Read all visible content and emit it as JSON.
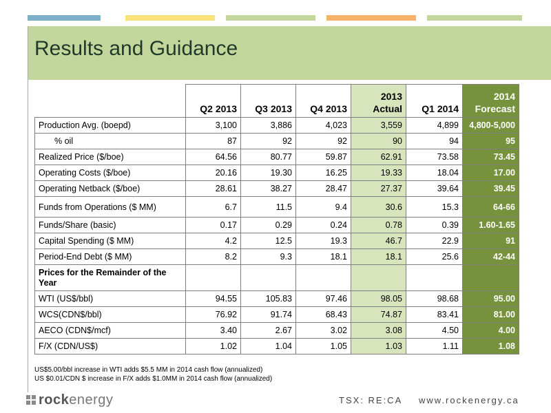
{
  "header": {
    "title": "Results and Guidance"
  },
  "colors": {
    "banner": "#c3d69b",
    "actual": "#d7e4bc",
    "forecast": "#76923c",
    "bars": [
      "#7fb0c9",
      "#f9e27a",
      "#c3d69b",
      "#f6b26b",
      "#c3d69b"
    ]
  },
  "table": {
    "columns": [
      {
        "line1": "",
        "line2": "Q2 2013"
      },
      {
        "line1": "",
        "line2": "Q3 2013"
      },
      {
        "line1": "",
        "line2": "Q4 2013"
      },
      {
        "line1": "2013",
        "line2": "Actual"
      },
      {
        "line1": "",
        "line2": "Q1 2014"
      },
      {
        "line1": "2014",
        "line2": "Forecast"
      }
    ],
    "rows": [
      {
        "label": "Production Avg. (boepd)",
        "v": [
          "3,100",
          "3,886",
          "4,023",
          "3,559",
          "4,899",
          "4,800-5,000"
        ]
      },
      {
        "label": "% oil",
        "indent": true,
        "v": [
          "87",
          "92",
          "92",
          "90",
          "94",
          "95"
        ]
      },
      {
        "label": "Realized Price ($/boe)",
        "v": [
          "64.56",
          "80.77",
          "59.87",
          "62.91",
          "73.58",
          "73.45"
        ]
      },
      {
        "label": "Operating Costs  ($/boe)",
        "v": [
          "20.16",
          "19.30",
          "16.25",
          "19.33",
          "18.04",
          "17.00"
        ]
      },
      {
        "label": "Operating Netback ($/boe)",
        "v": [
          "28.61",
          "38.27",
          "28.47",
          "27.37",
          "39.64",
          "39.45"
        ]
      },
      {
        "label": "Funds from Operations ($ MM)",
        "v": [
          "6.7",
          "11.5",
          "9.4",
          "30.6",
          "15.3",
          "64-66"
        ],
        "tall": true
      },
      {
        "label": "Funds/Share (basic)",
        "v": [
          "0.17",
          "0.29",
          "0.24",
          "0.78",
          "0.39",
          "1.60-1.65"
        ]
      },
      {
        "label": "Capital Spending ($ MM)",
        "v": [
          "4.2",
          "12.5",
          "19.3",
          "46.7",
          "22.9",
          "91"
        ]
      },
      {
        "label": "Period-End Debt ($ MM)",
        "v": [
          "8.2",
          "9.3",
          "18.1",
          "18.1",
          "25.6",
          "42-44"
        ]
      },
      {
        "label": "Prices for the Remainder of the Year",
        "section": true,
        "v": [
          "",
          "",
          "",
          "",
          "",
          ""
        ]
      },
      {
        "label": "WTI (US$/bbl)",
        "v": [
          "94.55",
          "105.83",
          "97.46",
          "98.05",
          "98.68",
          "95.00"
        ]
      },
      {
        "label": "WCS(CDN$/bbl)",
        "v": [
          "76.92",
          "91.74",
          "68.43",
          "74.87",
          "83.41",
          "81.00"
        ]
      },
      {
        "label": "AECO (CDN$/mcf)",
        "v": [
          "3.40",
          "2.67",
          "3.02",
          "3.08",
          "4.50",
          "4.00"
        ]
      },
      {
        "label": "F/X (CDN/US$)",
        "v": [
          "1.02",
          "1.04",
          "1.05",
          "1.03",
          "1.11",
          "1.08"
        ]
      }
    ]
  },
  "notes": [
    "US$5.00/bbl increase in WTI adds $5.5 MM in 2014 cash flow (annualized)",
    "US $0.01/CDN $ increase in F/X adds $1.0MM in 2014 cash flow (annualized)"
  ],
  "footer": {
    "logo_bold": "rock",
    "logo_light": "energy",
    "ticker": "TSX: RE:CA",
    "website": "www.rockenergy.ca"
  }
}
